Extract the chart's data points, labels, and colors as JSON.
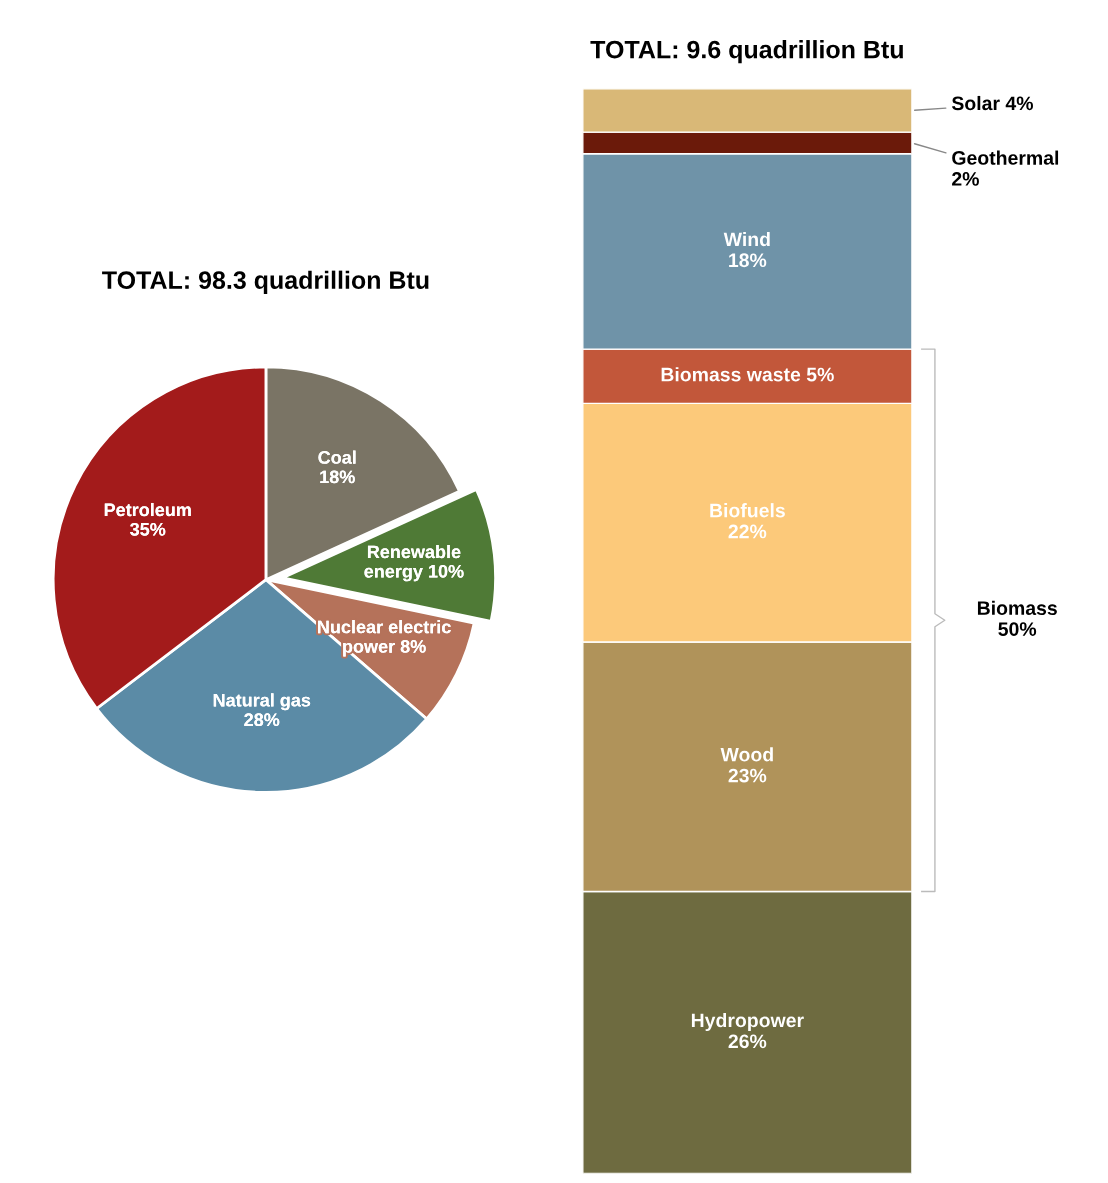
{
  "chart_data": [
    {
      "type": "pie",
      "title": "TOTAL: 98.3 quadrillion Btu",
      "categories": [
        "Coal",
        "Renewable energy",
        "Nuclear electric power",
        "Natural gas",
        "Petroleum"
      ],
      "values": [
        18,
        10,
        8,
        28,
        35
      ],
      "value_labels": [
        "18%",
        "10%",
        "8%",
        "28%",
        "35%"
      ],
      "colors": [
        "#7a7465",
        "#4f7a36",
        "#b5725a",
        "#5b8ba6",
        "#a31b1b"
      ]
    },
    {
      "type": "bar",
      "stacked": true,
      "title": "TOTAL: 9.6 quadrillion Btu",
      "categories": [
        null
      ],
      "series": [
        {
          "name": "Hydropower",
          "color": "#6e6b40",
          "values": [
            26
          ],
          "value_labels": [
            "26%"
          ]
        },
        {
          "name": "Wood",
          "color": "#b0935a",
          "values": [
            23
          ],
          "value_labels": [
            "23%"
          ]
        },
        {
          "name": "Biofuels",
          "color": "#fcc97a",
          "values": [
            22
          ],
          "value_labels": [
            "22%"
          ]
        },
        {
          "name": "Biomass waste",
          "color": "#c2573a",
          "values": [
            5
          ],
          "value_labels": [
            "5%"
          ]
        },
        {
          "name": "Wind",
          "color": "#6f93a8",
          "values": [
            18
          ],
          "value_labels": [
            "18%"
          ]
        },
        {
          "name": "Geothermal",
          "color": "#6b1a0a",
          "values": [
            2
          ],
          "value_labels": [
            "2%"
          ]
        },
        {
          "name": "Solar",
          "color": "#d9b877",
          "values": [
            4
          ],
          "value_labels": [
            "4%"
          ]
        }
      ],
      "annotations": [
        "Biomass\n50%"
      ]
    }
  ]
}
